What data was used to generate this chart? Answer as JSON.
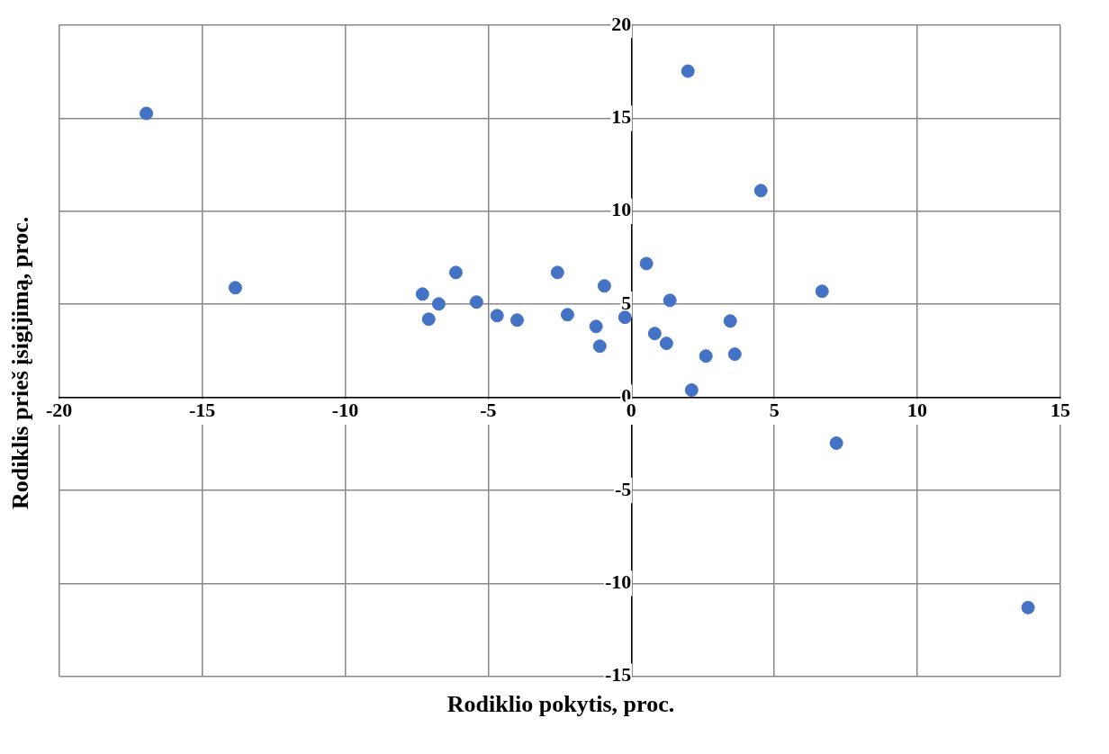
{
  "chart_data": {
    "type": "scatter",
    "xlabel": "Rodiklio pokytis, proc.",
    "ylabel": "Rodiklis prieš įsigijimą, proc.",
    "x": [
      -16.95,
      -13.84,
      -7.3,
      -7.08,
      -6.73,
      -6.13,
      -5.41,
      -4.69,
      -3.99,
      -2.58,
      -2.23,
      -1.23,
      -1.1,
      -0.94,
      -0.22,
      0.53,
      0.82,
      1.23,
      1.35,
      1.98,
      2.11,
      2.61,
      3.46,
      3.62,
      4.53,
      6.67,
      7.17,
      13.87
    ],
    "values": [
      15.26,
      5.89,
      5.55,
      4.2,
      5.02,
      6.71,
      5.12,
      4.39,
      4.15,
      6.71,
      4.44,
      3.81,
      2.75,
      5.99,
      4.3,
      7.19,
      3.43,
      2.9,
      5.21,
      17.53,
      0.39,
      2.22,
      4.1,
      2.32,
      11.11,
      5.7,
      -2.46,
      -11.3
    ],
    "color": "#4472c4",
    "marker": "circle",
    "grid": true,
    "xlim": [
      -20,
      15
    ],
    "xticks": [
      -20,
      -15,
      -10,
      -5,
      0,
      5,
      10,
      15
    ],
    "ylim": [
      -15,
      20
    ],
    "yticks": [
      -15,
      -10,
      -5,
      0,
      5,
      10,
      15,
      20
    ]
  }
}
